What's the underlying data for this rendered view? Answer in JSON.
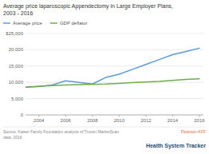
{
  "chart_data": {
    "type": "line",
    "title": "Average price laparoscopic Appendectomy in Large Employer Plans,",
    "subtitle": "2003 - 2016",
    "x": [
      2003,
      2004,
      2005,
      2006,
      2007,
      2008,
      2009,
      2010,
      2011,
      2012,
      2013,
      2014,
      2015,
      2016
    ],
    "series": [
      {
        "name": "Average price",
        "color": "#5b9bd5",
        "values": [
          8500,
          8700,
          9200,
          10500,
          10000,
          9500,
          11500,
          12500,
          14000,
          15500,
          17000,
          18500,
          19500,
          20500
        ]
      },
      {
        "name": "GDP deflator",
        "color": "#70ad47",
        "values": [
          8500,
          8800,
          9000,
          9200,
          9300,
          9400,
          9500,
          9700,
          9900,
          10100,
          10300,
          10600,
          10900,
          11100
        ]
      }
    ],
    "xlim": [
      2003,
      2016.3
    ],
    "xticks": [
      2004,
      2006,
      2008,
      2010,
      2012,
      2014,
      2016
    ],
    "ylim": [
      0,
      25000
    ],
    "yticks": [
      0,
      {
        "value": 5000,
        "label": "5,000"
      },
      {
        "value": 10000,
        "label": "10,000"
      },
      {
        "value": 15000,
        "label": "15,000"
      },
      {
        "value": 20000,
        "label": "20,000"
      },
      {
        "value": 25000,
        "label": "$25,000"
      }
    ],
    "grid": true,
    "legend": "top-left",
    "annotations": [
      {
        "text": "Source: Kaiser Family Foundation analysis of Truven MarketScan\ndata, 2016"
      },
      {
        "text": "Peterson-KFF",
        "color": "#e8693a"
      },
      {
        "text": "Health System Tracker",
        "color": "#1f4e79"
      }
    ]
  }
}
